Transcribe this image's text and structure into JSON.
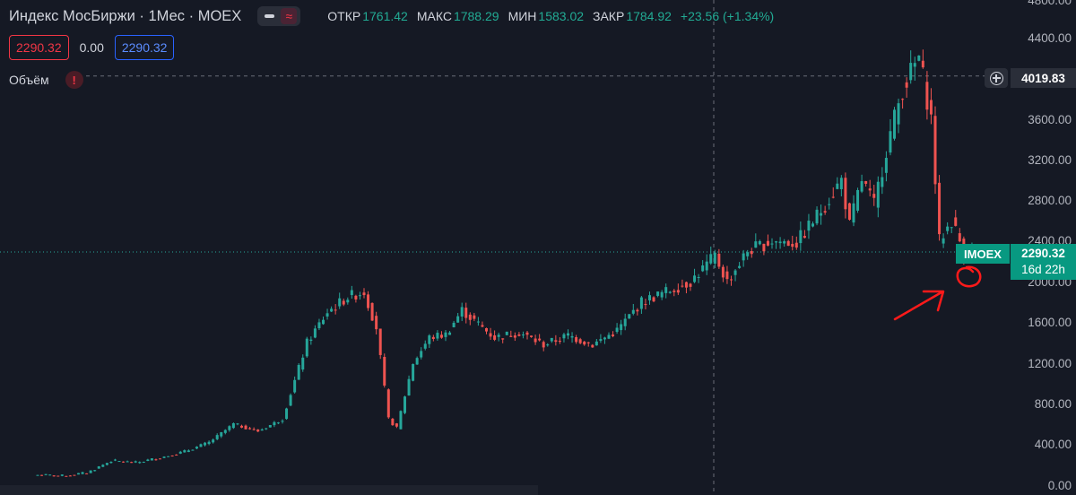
{
  "legend": {
    "title": "Индекс МосБиржи · 1Мес · MOEX",
    "open_label": "ОТКР",
    "open": "1761.42",
    "high_label": "МАКС",
    "high": "1788.29",
    "low_label": "МИН",
    "low": "1583.02",
    "close_label": "ЗАКР",
    "close": "1784.92",
    "change": "+23.56 (+1.34%)",
    "wave_glyph": "≈"
  },
  "price_inputs": {
    "bid": "2290.32",
    "spread": "0.00",
    "ask": "2290.32"
  },
  "indicator": {
    "label": "Объём",
    "warning_glyph": "!"
  },
  "y_axis": {
    "labels": [
      "4800.00",
      "4400.00",
      "4000.00",
      "3600.00",
      "3200.00",
      "2800.00",
      "2400.00",
      "2000.00",
      "1600.00",
      "1200.00",
      "800.00",
      "400.00",
      "0.00"
    ]
  },
  "crosshair": {
    "price": "4019.83"
  },
  "last_price": {
    "symbol": "IMOEX",
    "price": "2290.32",
    "countdown": "16d 22h"
  },
  "colors": {
    "background": "#151924",
    "up": "#26a69a",
    "down": "#ef5350",
    "accent": "#2962ff",
    "annotation": "#ff1a1a"
  },
  "chart_data": {
    "type": "candlestick",
    "ylim": [
      0,
      4800
    ],
    "trend": [
      [
        0,
        100
      ],
      [
        6,
        90
      ],
      [
        12,
        120
      ],
      [
        18,
        240
      ],
      [
        24,
        220
      ],
      [
        30,
        270
      ],
      [
        36,
        330
      ],
      [
        42,
        420
      ],
      [
        48,
        600
      ],
      [
        54,
        530
      ],
      [
        60,
        650
      ],
      [
        66,
        1400
      ],
      [
        71,
        1700
      ],
      [
        76,
        1850
      ],
      [
        80,
        1900
      ],
      [
        83,
        1550
      ],
      [
        86,
        650
      ],
      [
        88,
        560
      ],
      [
        92,
        1200
      ],
      [
        96,
        1450
      ],
      [
        100,
        1480
      ],
      [
        104,
        1720
      ],
      [
        108,
        1580
      ],
      [
        112,
        1450
      ],
      [
        118,
        1500
      ],
      [
        124,
        1380
      ],
      [
        130,
        1470
      ],
      [
        136,
        1380
      ],
      [
        142,
        1520
      ],
      [
        148,
        1800
      ],
      [
        154,
        1900
      ],
      [
        160,
        2000
      ],
      [
        166,
        2250
      ],
      [
        169,
        2000
      ],
      [
        174,
        2300
      ],
      [
        180,
        2400
      ],
      [
        186,
        2380
      ],
      [
        192,
        2700
      ],
      [
        197,
        3000
      ],
      [
        199,
        2550
      ],
      [
        202,
        3000
      ],
      [
        205,
        2750
      ],
      [
        208,
        3300
      ],
      [
        212,
        3900
      ],
      [
        216,
        4200
      ],
      [
        219,
        3600
      ],
      [
        221,
        2400
      ],
      [
        224,
        2600
      ],
      [
        227,
        2300
      ],
      [
        230,
        2290
      ]
    ]
  }
}
